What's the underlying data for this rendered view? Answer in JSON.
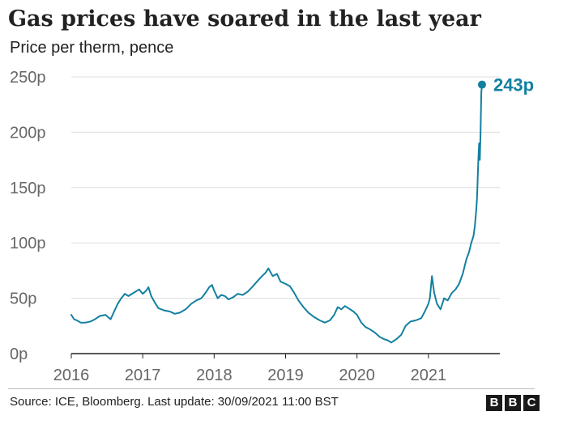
{
  "title": "Gas prices have soared in the last year",
  "subtitle": "Price per therm, pence",
  "source": "Source: ICE, Bloomberg. Last update: 30/09/2021 11:00 BST",
  "logo": [
    "B",
    "B",
    "C"
  ],
  "colors": {
    "line": "#1380a1",
    "grid": "#dddddd",
    "axis": "#222222",
    "tick_text": "#666666"
  },
  "chart_data": {
    "type": "line",
    "title": "Gas prices have soared in the last year",
    "subtitle": "Price per therm, pence",
    "xlabel": "",
    "ylabel": "",
    "x_unit": "year",
    "xlim": [
      2016.0,
      2022.0
    ],
    "ylim": [
      0,
      250
    ],
    "x_ticks": [
      2016,
      2017,
      2018,
      2019,
      2020,
      2021
    ],
    "x_tick_labels": [
      "2016",
      "2017",
      "2018",
      "2019",
      "2020",
      "2021"
    ],
    "y_ticks": [
      0,
      50,
      100,
      150,
      200,
      250
    ],
    "y_tick_labels": [
      "0p",
      "50p",
      "100p",
      "150p",
      "200p",
      "250p"
    ],
    "grid": "horizontal",
    "end_label": "243p",
    "series": [
      {
        "color": "#1380a1",
        "x": [
          2016.0,
          2016.04,
          2016.08,
          2016.13,
          2016.2,
          2016.27,
          2016.33,
          2016.4,
          2016.48,
          2016.55,
          2016.6,
          2016.65,
          2016.7,
          2016.75,
          2016.8,
          2016.85,
          2016.9,
          2016.95,
          2017.0,
          2017.05,
          2017.08,
          2017.12,
          2017.17,
          2017.22,
          2017.3,
          2017.38,
          2017.45,
          2017.52,
          2017.6,
          2017.68,
          2017.75,
          2017.82,
          2017.88,
          2017.93,
          2017.97,
          2018.0,
          2018.05,
          2018.1,
          2018.15,
          2018.2,
          2018.27,
          2018.33,
          2018.4,
          2018.47,
          2018.53,
          2018.6,
          2018.67,
          2018.72,
          2018.76,
          2018.82,
          2018.88,
          2018.93,
          2019.0,
          2019.06,
          2019.12,
          2019.18,
          2019.25,
          2019.32,
          2019.4,
          2019.48,
          2019.55,
          2019.62,
          2019.68,
          2019.73,
          2019.78,
          2019.83,
          2019.88,
          2019.95,
          2020.0,
          2020.06,
          2020.12,
          2020.18,
          2020.25,
          2020.32,
          2020.38,
          2020.43,
          2020.48,
          2020.55,
          2020.62,
          2020.68,
          2020.75,
          2020.82,
          2020.9,
          2020.95,
          2021.0,
          2021.02,
          2021.05,
          2021.08,
          2021.12,
          2021.17,
          2021.22,
          2021.27,
          2021.33,
          2021.38,
          2021.43,
          2021.48,
          2021.53,
          2021.57,
          2021.6,
          2021.63,
          2021.65,
          2021.67,
          2021.68,
          2021.7,
          2021.71,
          2021.72,
          2021.73,
          2021.74,
          2021.75
        ],
        "values": [
          35,
          31,
          30,
          28,
          28,
          29,
          31,
          34,
          35,
          31,
          38,
          45,
          50,
          54,
          52,
          54,
          56,
          58,
          54,
          57,
          60,
          52,
          46,
          41,
          39,
          38,
          36,
          37,
          40,
          45,
          48,
          50,
          55,
          60,
          62,
          57,
          50,
          53,
          52,
          49,
          51,
          54,
          53,
          56,
          60,
          65,
          70,
          73,
          77,
          70,
          72,
          65,
          63,
          61,
          55,
          48,
          42,
          37,
          33,
          30,
          28,
          30,
          35,
          42,
          40,
          43,
          41,
          38,
          35,
          28,
          24,
          22,
          19,
          15,
          13,
          12,
          10,
          13,
          17,
          25,
          29,
          30,
          32,
          38,
          45,
          50,
          70,
          55,
          45,
          40,
          50,
          48,
          55,
          58,
          63,
          72,
          85,
          92,
          100,
          106,
          115,
          130,
          140,
          178,
          190,
          175,
          200,
          236,
          243
        ]
      }
    ]
  }
}
